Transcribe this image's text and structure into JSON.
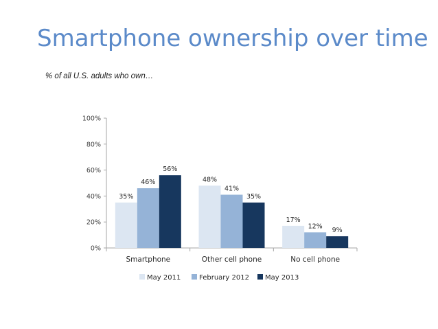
{
  "slide": {
    "title": "Smartphone ownership over time",
    "subtitle": "% of all U.S. adults who own…"
  },
  "colors": {
    "title": "#5b8ac9",
    "series": [
      "#dce6f2",
      "#95b3d7",
      "#17375e"
    ],
    "axis": "#a6a6a6"
  },
  "chart_data": {
    "type": "bar",
    "title": "",
    "xlabel": "",
    "ylabel": "",
    "categories": [
      "Smartphone",
      "Other cell phone",
      "No cell phone"
    ],
    "series": [
      {
        "name": "May 2011",
        "values": [
          35,
          48,
          17
        ],
        "labels": [
          "35%",
          "48%",
          "17%"
        ]
      },
      {
        "name": "February 2012",
        "values": [
          46,
          41,
          12
        ],
        "labels": [
          "46%",
          "41%",
          "12%"
        ]
      },
      {
        "name": "May 2013",
        "values": [
          56,
          35,
          9
        ],
        "labels": [
          "56%",
          "35%",
          "9%"
        ]
      }
    ],
    "ylim": [
      0,
      100
    ],
    "yticks": [
      0,
      20,
      40,
      60,
      80,
      100
    ],
    "ytick_labels": [
      "0%",
      "20%",
      "40%",
      "60%",
      "80%",
      "100%"
    ],
    "grid": false,
    "legend_position": "bottom"
  }
}
